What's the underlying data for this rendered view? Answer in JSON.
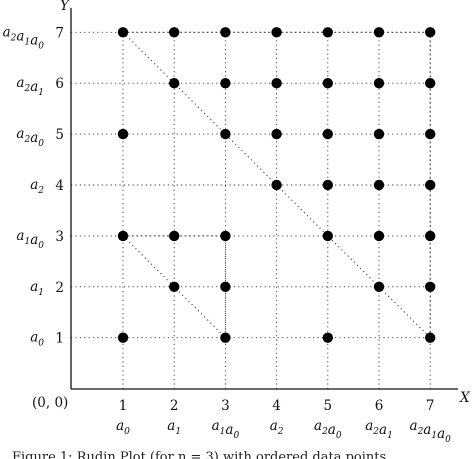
{
  "chart_data": {
    "type": "scatter",
    "x_axis_title": "X",
    "y_axis_title": "Y",
    "origin_label": "(0, 0)",
    "xlim": [
      0,
      7
    ],
    "ylim": [
      0,
      7
    ],
    "grid": true,
    "x_ticks": [
      {
        "value": 1,
        "num": "1",
        "label": [
          [
            "a",
            "0"
          ]
        ]
      },
      {
        "value": 2,
        "num": "2",
        "label": [
          [
            "a",
            "1"
          ]
        ]
      },
      {
        "value": 3,
        "num": "3",
        "label": [
          [
            "a",
            "1"
          ],
          [
            "a",
            "0"
          ]
        ]
      },
      {
        "value": 4,
        "num": "4",
        "label": [
          [
            "a",
            "2"
          ]
        ]
      },
      {
        "value": 5,
        "num": "5",
        "label": [
          [
            "a",
            "2"
          ],
          [
            "a",
            "0"
          ]
        ]
      },
      {
        "value": 6,
        "num": "6",
        "label": [
          [
            "a",
            "2"
          ],
          [
            "a",
            "1"
          ]
        ]
      },
      {
        "value": 7,
        "num": "7",
        "label": [
          [
            "a",
            "2"
          ],
          [
            "a",
            "1"
          ],
          [
            "a",
            "0"
          ]
        ]
      }
    ],
    "y_ticks": [
      {
        "value": 1,
        "num": "1",
        "label": [
          [
            "a",
            "0"
          ]
        ]
      },
      {
        "value": 2,
        "num": "2",
        "label": [
          [
            "a",
            "1"
          ]
        ]
      },
      {
        "value": 3,
        "num": "3",
        "label": [
          [
            "a",
            "1"
          ],
          [
            "a",
            "0"
          ]
        ]
      },
      {
        "value": 4,
        "num": "4",
        "label": [
          [
            "a",
            "2"
          ]
        ]
      },
      {
        "value": 5,
        "num": "5",
        "label": [
          [
            "a",
            "2"
          ],
          [
            "a",
            "0"
          ]
        ]
      },
      {
        "value": 6,
        "num": "6",
        "label": [
          [
            "a",
            "2"
          ],
          [
            "a",
            "1"
          ]
        ]
      },
      {
        "value": 7,
        "num": "7",
        "label": [
          [
            "a",
            "2"
          ],
          [
            "a",
            "1"
          ],
          [
            "a",
            "0"
          ]
        ]
      }
    ],
    "points": [
      [
        1,
        7
      ],
      [
        2,
        7
      ],
      [
        3,
        7
      ],
      [
        4,
        7
      ],
      [
        5,
        7
      ],
      [
        6,
        7
      ],
      [
        7,
        7
      ],
      [
        2,
        6
      ],
      [
        3,
        6
      ],
      [
        4,
        6
      ],
      [
        5,
        6
      ],
      [
        6,
        6
      ],
      [
        7,
        6
      ],
      [
        1,
        5
      ],
      [
        3,
        5
      ],
      [
        4,
        5
      ],
      [
        5,
        5
      ],
      [
        6,
        5
      ],
      [
        7,
        5
      ],
      [
        4,
        4
      ],
      [
        5,
        4
      ],
      [
        6,
        4
      ],
      [
        7,
        4
      ],
      [
        1,
        3
      ],
      [
        2,
        3
      ],
      [
        3,
        3
      ],
      [
        5,
        3
      ],
      [
        6,
        3
      ],
      [
        7,
        3
      ],
      [
        2,
        2
      ],
      [
        3,
        2
      ],
      [
        6,
        2
      ],
      [
        7,
        2
      ],
      [
        1,
        1
      ],
      [
        3,
        1
      ],
      [
        5,
        1
      ],
      [
        7,
        1
      ]
    ],
    "highlighted_edges": [
      [
        [
          1,
          7
        ],
        [
          7,
          7
        ]
      ],
      [
        [
          7,
          7
        ],
        [
          7,
          1
        ]
      ],
      [
        [
          1,
          7
        ],
        [
          7,
          1
        ]
      ],
      [
        [
          1,
          3
        ],
        [
          3,
          3
        ]
      ],
      [
        [
          3,
          3
        ],
        [
          3,
          1
        ]
      ],
      [
        [
          1,
          3
        ],
        [
          3,
          1
        ]
      ]
    ]
  },
  "caption": "Figure 1: Rudin Plot (for n = 3) with ordered data points"
}
